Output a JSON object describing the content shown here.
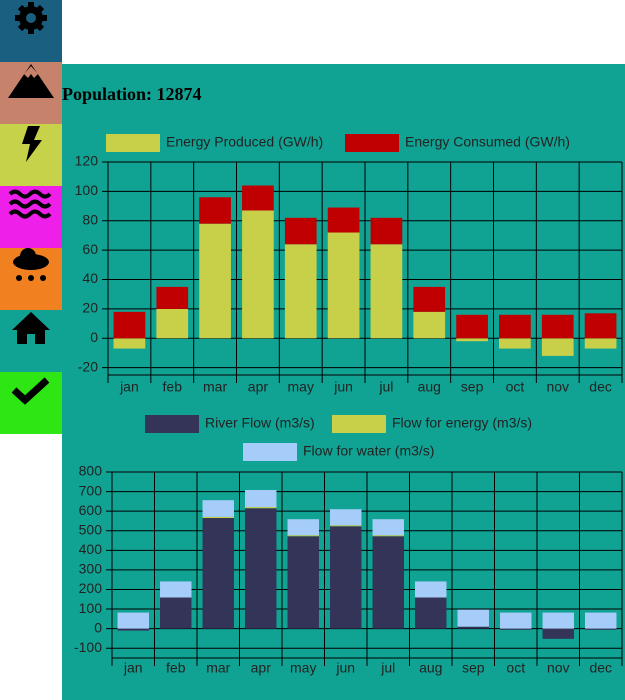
{
  "population": {
    "label": "Population:",
    "value": 12874
  },
  "chart_data": [
    {
      "type": "stacked-bar",
      "categories": [
        "jan",
        "feb",
        "mar",
        "apr",
        "may",
        "jun",
        "jul",
        "aug",
        "sep",
        "oct",
        "nov",
        "dec"
      ],
      "series": [
        {
          "name": "Energy Produced (GW/h)",
          "color": "#c8cf48",
          "values": [
            -7,
            20,
            78,
            87,
            64,
            72,
            64,
            18,
            -2,
            -7,
            -12,
            -7
          ]
        },
        {
          "name": "Energy Consumed (GW/h)",
          "color": "#c00000",
          "values": [
            18,
            15,
            18,
            17,
            18,
            17,
            18,
            17,
            16,
            16,
            16,
            17
          ]
        }
      ],
      "ylim": [
        -25,
        120
      ],
      "yticks": [
        -20,
        0,
        20,
        40,
        60,
        80,
        100,
        120
      ],
      "grid": true
    },
    {
      "type": "stacked-bar",
      "categories": [
        "jan",
        "feb",
        "mar",
        "apr",
        "may",
        "jun",
        "jul",
        "aug",
        "sep",
        "oct",
        "nov",
        "dec"
      ],
      "series": [
        {
          "name": "River Flow (m3/s)",
          "color": "#343458",
          "values": [
            -10,
            159,
            565,
            615,
            472,
            523,
            472,
            159,
            10,
            -6,
            -52,
            -6
          ]
        },
        {
          "name": "Flow for energy (m3/s)",
          "color": "#c8cf48",
          "values": [
            0,
            0,
            6,
            6,
            5,
            5,
            5,
            0,
            0,
            0,
            0,
            0
          ]
        },
        {
          "name": "Flow for water (m3/s)",
          "color": "#a6cdf9",
          "values": [
            82,
            82,
            85,
            87,
            82,
            82,
            82,
            82,
            87,
            82,
            82,
            82
          ]
        }
      ],
      "ylim": [
        -150,
        800
      ],
      "yticks": [
        -100,
        0,
        100,
        200,
        300,
        400,
        500,
        600,
        700,
        800
      ],
      "grid": true
    }
  ]
}
